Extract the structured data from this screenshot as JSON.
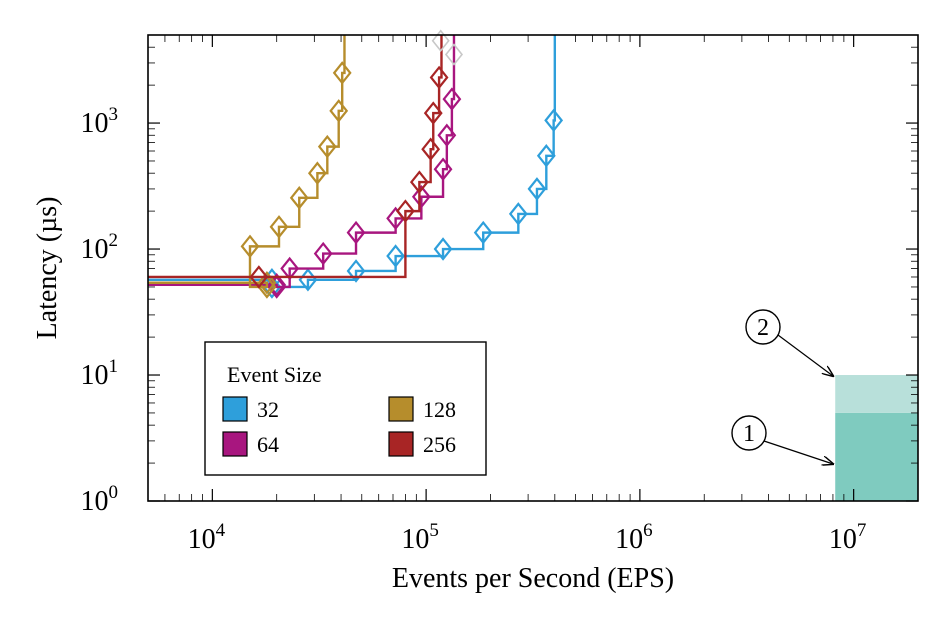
{
  "chart_data": {
    "type": "line",
    "title": "",
    "xlabel": "Events per Second (EPS)",
    "ylabel": "Latency (µs)",
    "xscale": "log",
    "yscale": "log",
    "xlim": [
      5000,
      20000000
    ],
    "ylim": [
      1,
      5000
    ],
    "x_ticks": [
      {
        "base": "10",
        "exp": "4",
        "value": 10000
      },
      {
        "base": "10",
        "exp": "5",
        "value": 100000
      },
      {
        "base": "10",
        "exp": "6",
        "value": 1000000
      },
      {
        "base": "10",
        "exp": "7",
        "value": 10000000
      }
    ],
    "y_ticks": [
      {
        "base": "10",
        "exp": "0",
        "value": 1
      },
      {
        "base": "10",
        "exp": "1",
        "value": 10
      },
      {
        "base": "10",
        "exp": "2",
        "value": 100
      },
      {
        "base": "10",
        "exp": "3",
        "value": 1000
      }
    ],
    "legend": {
      "title": "Event Size",
      "position": "bottom-left",
      "entries": [
        "32",
        "128",
        "64",
        "256"
      ]
    },
    "series": [
      {
        "name": "32",
        "color": "#2e9fdb",
        "points": [
          [
            5000,
            57
          ],
          [
            19000,
            57
          ],
          [
            19000,
            50
          ],
          [
            28000,
            57
          ],
          [
            47000,
            67
          ],
          [
            72000,
            88
          ],
          [
            120000,
            100
          ],
          [
            185000,
            135
          ],
          [
            270000,
            190
          ],
          [
            330000,
            300
          ],
          [
            365000,
            550
          ],
          [
            395000,
            1050
          ],
          [
            400000,
            5000
          ]
        ],
        "ghost": null
      },
      {
        "name": "64",
        "color": "#a8167f",
        "points": [
          [
            5000,
            52
          ],
          [
            20000,
            52
          ],
          [
            20000,
            50
          ],
          [
            23000,
            70
          ],
          [
            33000,
            92
          ],
          [
            47000,
            135
          ],
          [
            72000,
            175
          ],
          [
            95000,
            260
          ],
          [
            120000,
            430
          ],
          [
            125000,
            800
          ],
          [
            132000,
            1550
          ],
          [
            135000,
            5000
          ]
        ],
        "ghost": [
          135000,
          3500
        ]
      },
      {
        "name": "128",
        "color": "#b68d2c",
        "points": [
          [
            5000,
            54
          ],
          [
            18000,
            54
          ],
          [
            18000,
            50
          ],
          [
            15000,
            105
          ],
          [
            20500,
            150
          ],
          [
            25500,
            255
          ],
          [
            31000,
            400
          ],
          [
            34500,
            650
          ],
          [
            39000,
            1250
          ],
          [
            40500,
            2500
          ],
          [
            41500,
            5000
          ]
        ],
        "ghost": null
      },
      {
        "name": "256",
        "color": "#a82525",
        "points": [
          [
            5000,
            60
          ],
          [
            16500,
            60
          ],
          [
            16500,
            60
          ],
          [
            80000,
            200
          ],
          [
            93000,
            340
          ],
          [
            105000,
            620
          ],
          [
            108000,
            1200
          ],
          [
            115000,
            2300
          ],
          [
            118000,
            5000
          ]
        ],
        "ghost": [
          117000,
          4500
        ]
      }
    ],
    "annotations": [
      {
        "label": "1",
        "region": {
          "x": [
            8200000,
            20000000
          ],
          "y": [
            1,
            5
          ]
        },
        "color": "#7fcbbf"
      },
      {
        "label": "2",
        "region": {
          "x": [
            8200000,
            20000000
          ],
          "y": [
            5,
            10
          ]
        },
        "color": "#b8e0da"
      }
    ]
  }
}
